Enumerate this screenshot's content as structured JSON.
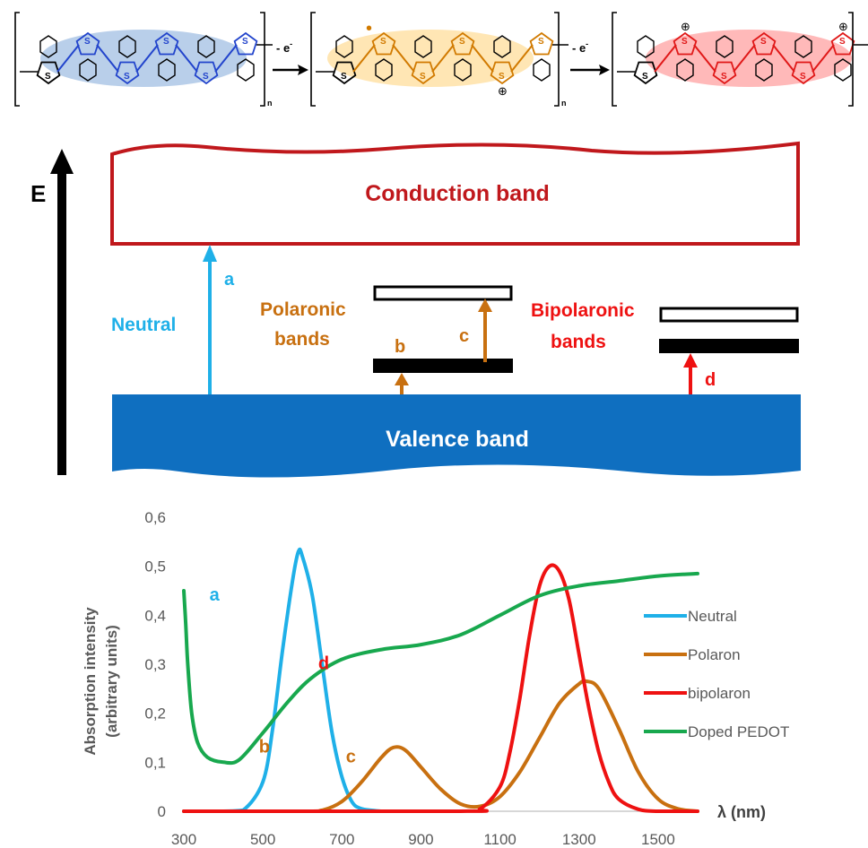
{
  "structures": {
    "subscript": "n",
    "step_label_1": "- e",
    "step_label_2": "- e",
    "electron_sup": "-",
    "sulfur": "S",
    "plus": "⊕",
    "radical": "•",
    "colors": {
      "neutral": "#2244cc",
      "polaron": "#d17a00",
      "bipolaron": "#e01818",
      "neutral_glow": "#7fa8d8",
      "polaron_glow": "#ffd98c",
      "bipolaron_glow": "#ff8a8a"
    }
  },
  "band_diagram": {
    "energy_label": "E",
    "conduction_band": "Conduction band",
    "valence_band": "Valence band",
    "neutral_label": "Neutral",
    "polaronic_label_1": "Polaronic",
    "polaronic_label_2": "bands",
    "bipolaronic_label_1": "Bipolaronic",
    "bipolaronic_label_2": "bands",
    "arrow_labels": {
      "a": "a",
      "b": "b",
      "c": "c",
      "d": "d"
    },
    "colors": {
      "conduction": "#c0181c",
      "valence": "#0f6fc0",
      "neutral": "#1fb0e8",
      "polaron": "#c87010",
      "bipolaron": "#ee1111"
    }
  },
  "chart_data": {
    "type": "line",
    "ylabel_line1": "Absorption intensity",
    "ylabel_line2": "(arbitrary units)",
    "xlabel": "λ  (nm)",
    "xlim": [
      300,
      1600
    ],
    "ylim": [
      0,
      0.6
    ],
    "xticks": [
      "300",
      "500",
      "700",
      "900",
      "1100",
      "1300",
      "1500"
    ],
    "yticks": [
      "0",
      "0,1",
      "0,2",
      "0,3",
      "0,4",
      "0,5",
      "0,6"
    ],
    "grid": false,
    "legend_position": "right",
    "annotations": [
      {
        "text": "a",
        "x": 365,
        "y": 0.43,
        "color": "#1fb0e8"
      },
      {
        "text": "b",
        "x": 490,
        "y": 0.12,
        "color": "#c87010"
      },
      {
        "text": "c",
        "x": 710,
        "y": 0.1,
        "color": "#c87010"
      },
      {
        "text": "d",
        "x": 640,
        "y": 0.29,
        "color": "#ee1111"
      }
    ],
    "series": [
      {
        "name": "Neutral",
        "color": "#1fb0e8",
        "x": [
          300,
          400,
          450,
          500,
          525,
          550,
          575,
          590,
          600,
          625,
          650,
          675,
          700,
          725,
          750,
          800
        ],
        "y": [
          0,
          0,
          0.002,
          0.06,
          0.17,
          0.33,
          0.47,
          0.53,
          0.52,
          0.44,
          0.3,
          0.16,
          0.07,
          0.02,
          0.005,
          0
        ]
      },
      {
        "name": "Polaron",
        "color": "#c87010",
        "x": [
          300,
          600,
          650,
          700,
          750,
          800,
          830,
          860,
          900,
          950,
          1000,
          1050,
          1100,
          1150,
          1200,
          1250,
          1300,
          1320,
          1350,
          1400,
          1450,
          1500,
          1550,
          1600
        ],
        "y": [
          0,
          0,
          0.002,
          0.02,
          0.06,
          0.11,
          0.13,
          0.125,
          0.09,
          0.045,
          0.015,
          0.01,
          0.03,
          0.08,
          0.15,
          0.22,
          0.26,
          0.265,
          0.25,
          0.17,
          0.08,
          0.025,
          0.005,
          0
        ]
      },
      {
        "name": "bipolaron",
        "color": "#ee1111",
        "x": [
          300,
          1000,
          1050,
          1100,
          1125,
          1150,
          1175,
          1200,
          1225,
          1250,
          1275,
          1300,
          1325,
          1350,
          1375,
          1400,
          1450,
          1500,
          1600
        ],
        "y": [
          0,
          0,
          0.005,
          0.05,
          0.12,
          0.23,
          0.36,
          0.46,
          0.5,
          0.49,
          0.43,
          0.32,
          0.21,
          0.12,
          0.06,
          0.025,
          0.004,
          0,
          0
        ]
      },
      {
        "name": "Doped PEDOT",
        "color": "#18a84e",
        "x": [
          300,
          305,
          310,
          320,
          335,
          360,
          400,
          440,
          500,
          560,
          620,
          700,
          800,
          900,
          1000,
          1100,
          1200,
          1300,
          1400,
          1500,
          1600
        ],
        "y": [
          0.45,
          0.38,
          0.3,
          0.2,
          0.14,
          0.11,
          0.1,
          0.105,
          0.16,
          0.22,
          0.27,
          0.31,
          0.33,
          0.34,
          0.36,
          0.4,
          0.44,
          0.46,
          0.47,
          0.48,
          0.485
        ]
      }
    ]
  }
}
